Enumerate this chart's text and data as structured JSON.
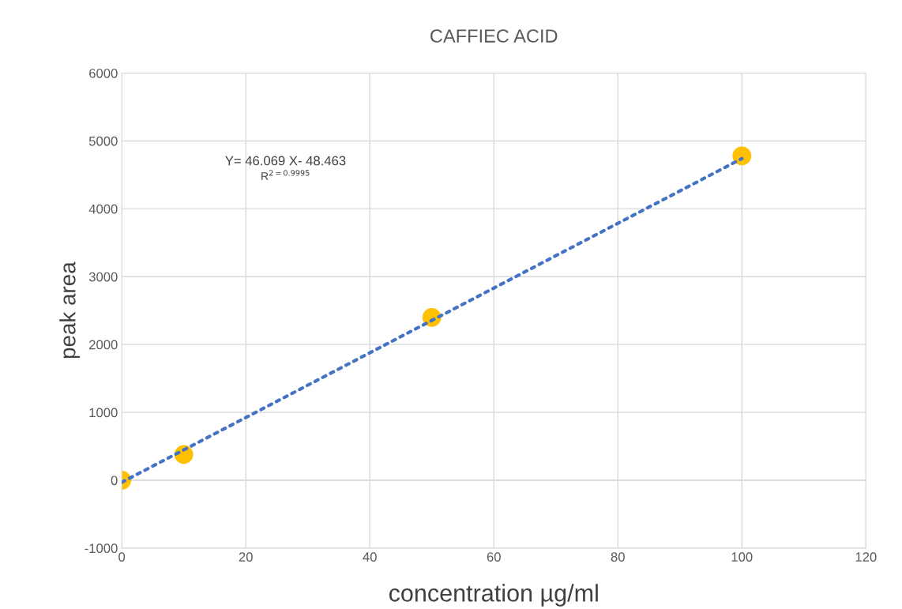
{
  "chart_data": {
    "type": "scatter",
    "title": "CAFFIEC ACID",
    "xlabel": "concentration µg/ml",
    "ylabel": "peak area",
    "xlim": [
      0,
      120
    ],
    "xticks": [
      0,
      20,
      40,
      60,
      80,
      100,
      120
    ],
    "ylim": [
      -1000,
      6000
    ],
    "yticks": [
      -1000,
      0,
      1000,
      2000,
      3000,
      4000,
      5000,
      6000
    ],
    "grid": true,
    "legend": false,
    "series": [
      {
        "type": "line",
        "color": "#4472c4",
        "x": [
          0,
          100
        ],
        "values": [
          -30,
          4740
        ],
        "line_style": "dotted",
        "marker": "none"
      },
      {
        "color": "#ffc000",
        "x": [
          0,
          10,
          50,
          100
        ],
        "values": [
          0,
          380,
          2400,
          4780
        ],
        "marker": "circle"
      }
    ],
    "annotations": [
      "Y= 46.069 X- 48.463",
      "R$^{2=0.9995}$"
    ]
  }
}
